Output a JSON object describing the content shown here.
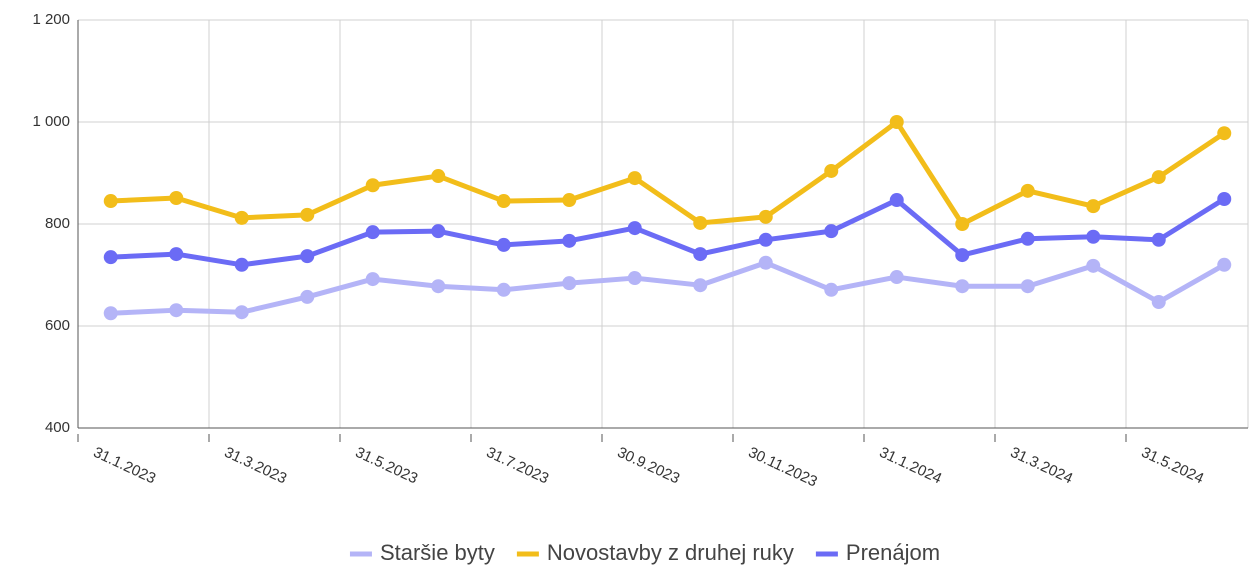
{
  "chart_data": {
    "type": "line",
    "categories": [
      "31.1.2023",
      null,
      "31.3.2023",
      null,
      "31.5.2023",
      null,
      "31.7.2023",
      null,
      "30.9.2023",
      null,
      "30.11.2023",
      null,
      "31.1.2024",
      null,
      "31.3.2024",
      null,
      "31.5.2024",
      null
    ],
    "series": [
      {
        "name": "Staršie byty",
        "color": "#b4b4f7",
        "values": [
          625,
          631,
          627,
          657,
          692,
          678,
          671,
          684,
          694,
          680,
          724,
          671,
          696,
          678,
          678,
          718,
          647,
          720
        ]
      },
      {
        "name": "Novostavby z druhej ruky",
        "color": "#f2bd1a",
        "values": [
          845,
          851,
          812,
          818,
          876,
          894,
          845,
          847,
          890,
          802,
          814,
          904,
          1000,
          800,
          865,
          835,
          892,
          978
        ]
      },
      {
        "name": "Prenájom",
        "color": "#6b6bf5",
        "values": [
          735,
          741,
          720,
          737,
          784,
          786,
          759,
          767,
          792,
          741,
          769,
          786,
          847,
          739,
          771,
          775,
          769,
          849
        ]
      }
    ],
    "ylim": [
      400,
      1200
    ],
    "yticks": [
      400,
      600,
      800,
      {
        "value": 1000,
        "label": "1 000"
      },
      {
        "value": 1200,
        "label": "1 200"
      }
    ],
    "grid": true,
    "legend": "bottom"
  }
}
